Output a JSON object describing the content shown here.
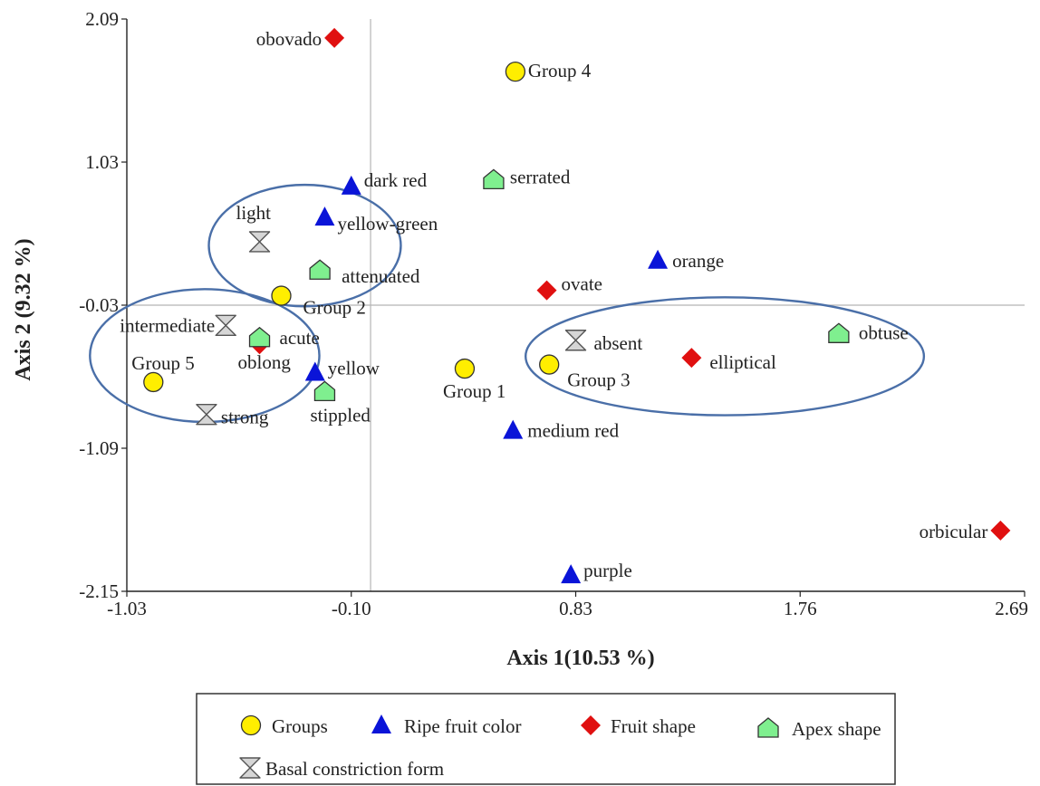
{
  "chart_data": {
    "type": "scatter",
    "xlabel": "Axis 1(10.53 %)",
    "ylabel": "Axis 2 (9.32 %)",
    "xlim": [
      -1.03,
      2.69
    ],
    "ylim": [
      -2.15,
      2.09
    ],
    "x_ticks": [
      "-1.03",
      "-0.10",
      "0.83",
      "1.76",
      "2.69"
    ],
    "y_ticks": [
      "2.09",
      "1.03",
      "-0.03",
      "-1.09",
      "-2.15"
    ],
    "reference_lines": {
      "x": -0.02,
      "y": -0.03
    },
    "colors": {
      "groups": "#ffee00",
      "ripe_fruit_color": "#0a14d8",
      "fruit_shape": "#e01010",
      "apex_shape": "#7fef8f",
      "basal_constriction": "#d6d6d6",
      "ellipse": "#4a6fa8"
    },
    "series": [
      {
        "name": "Groups",
        "marker": "circle",
        "points": [
          {
            "label": "Group 4",
            "x": 0.58,
            "y": 1.7
          },
          {
            "label": "Group 2",
            "x": -0.39,
            "y": 0.04
          },
          {
            "label": "Group 5",
            "x": -0.92,
            "y": -0.6
          },
          {
            "label": "Group 1",
            "x": 0.37,
            "y": -0.5
          },
          {
            "label": "Group 3",
            "x": 0.72,
            "y": -0.47
          }
        ]
      },
      {
        "name": "Ripe fruit color",
        "marker": "triangle",
        "points": [
          {
            "label": "dark red",
            "x": -0.1,
            "y": 0.85
          },
          {
            "label": "yellow-green",
            "x": -0.21,
            "y": 0.62
          },
          {
            "label": "orange",
            "x": 1.17,
            "y": 0.3
          },
          {
            "label": "yellow",
            "x": -0.25,
            "y": -0.53
          },
          {
            "label": "medium red",
            "x": 0.57,
            "y": -0.96
          },
          {
            "label": "purple",
            "x": 0.81,
            "y": -2.03
          }
        ]
      },
      {
        "name": "Fruit shape",
        "marker": "diamond",
        "points": [
          {
            "label": "obovado",
            "x": -0.17,
            "y": 1.95
          },
          {
            "label": "ovate",
            "x": 0.71,
            "y": 0.08
          },
          {
            "label": "elliptical",
            "x": 1.31,
            "y": -0.42
          },
          {
            "label": "oblong",
            "x": -0.48,
            "y": -0.32
          },
          {
            "label": "orbicular",
            "x": 2.59,
            "y": -1.7
          }
        ]
      },
      {
        "name": "Apex shape",
        "marker": "pentagon",
        "points": [
          {
            "label": "serrated",
            "x": 0.49,
            "y": 0.9
          },
          {
            "label": "attenuated",
            "x": -0.23,
            "y": 0.23
          },
          {
            "label": "acute",
            "x": -0.48,
            "y": -0.27
          },
          {
            "label": "stippled",
            "x": -0.21,
            "y": -0.67
          },
          {
            "label": "obtuse",
            "x": 1.92,
            "y": -0.24
          }
        ]
      },
      {
        "name": "Basal constriction form",
        "marker": "hourglass",
        "points": [
          {
            "label": "light",
            "x": -0.48,
            "y": 0.44
          },
          {
            "label": "intermediate",
            "x": -0.62,
            "y": -0.18
          },
          {
            "label": "absent",
            "x": 0.83,
            "y": -0.29
          },
          {
            "label": "strong",
            "x": -0.7,
            "y": -0.84
          }
        ]
      }
    ],
    "legend": {
      "position": "bottom",
      "entries": [
        {
          "label": "Groups",
          "marker": "circle",
          "color": "#ffee00"
        },
        {
          "label": "Ripe fruit color",
          "marker": "triangle",
          "color": "#0a14d8"
        },
        {
          "label": "Fruit shape",
          "marker": "diamond",
          "color": "#e01010"
        },
        {
          "label": "Apex shape",
          "marker": "pentagon",
          "color": "#7fef8f"
        },
        {
          "label": "Basal constriction form",
          "marker": "hourglass",
          "color": "#d6d6d6"
        }
      ]
    },
    "highlight_ellipses": [
      {
        "encloses": [
          "light",
          "yellow-green",
          "attenuated"
        ]
      },
      {
        "encloses": [
          "Group 5",
          "intermediate",
          "acute",
          "oblong"
        ]
      },
      {
        "encloses": [
          "absent",
          "Group 3",
          "elliptical",
          "obtuse"
        ]
      }
    ]
  }
}
